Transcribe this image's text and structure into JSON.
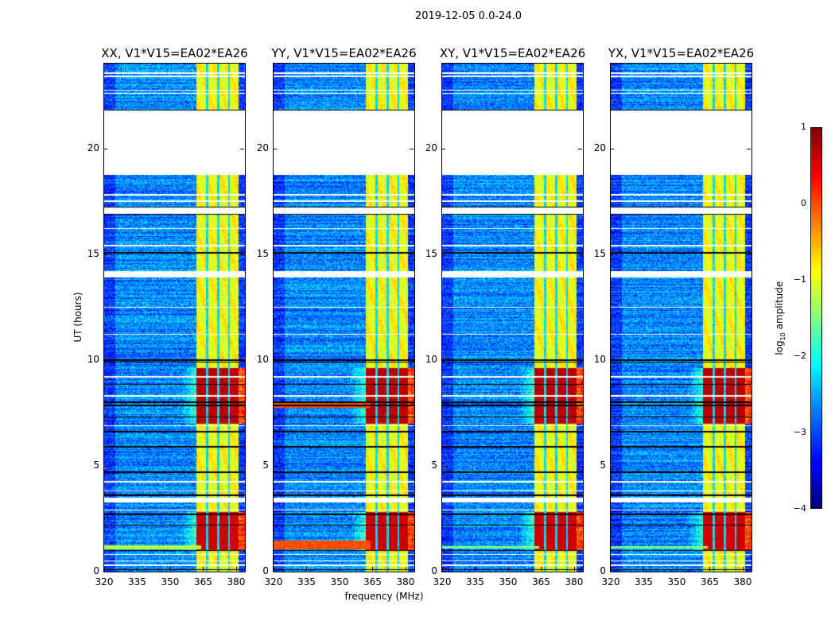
{
  "chart_data": {
    "type": "heatmap",
    "title": "2019-12-05 0.0-24.0",
    "xlabel": "frequency (MHz)",
    "ylabel": "UT (hours)",
    "xlim": [
      320,
      384
    ],
    "ylim": [
      0,
      24
    ],
    "xticks": [
      "320",
      "335",
      "350",
      "365",
      "380"
    ],
    "xtick_values": [
      320,
      335,
      350,
      365,
      380
    ],
    "yticks": [
      "0",
      "5",
      "10",
      "15",
      "20"
    ],
    "ytick_values": [
      0,
      5,
      10,
      15,
      20
    ],
    "colorbar": {
      "label_parts": [
        "log",
        "10",
        " amplitude"
      ],
      "range": [
        -4,
        1
      ],
      "ticks": [
        "1",
        "0",
        "−1",
        "−2",
        "−3",
        "−4"
      ],
      "tick_values": [
        1,
        0,
        -1,
        -2,
        -3,
        -4
      ],
      "colormap": "jet"
    },
    "background_level": -2.7,
    "no_data_intervals_hours": [
      [
        18.75,
        21.8
      ],
      [
        16.9,
        17.2
      ],
      [
        13.9,
        14.2
      ],
      [
        3.25,
        3.5
      ]
    ],
    "flagged_lines_hours": [
      0.1,
      1.0,
      2.2,
      2.7,
      3.6,
      4.7,
      5.9,
      6.6,
      7.3,
      7.85,
      8.0,
      8.85,
      9.9,
      10.0,
      15.05,
      16.9,
      17.2,
      21.8
    ],
    "white_lines_hours": [
      0.3,
      0.5,
      0.8,
      2.9,
      3.8,
      4.25,
      6.9,
      8.3,
      9.2,
      11.2,
      12.5,
      15.4,
      16.2,
      17.5,
      17.8,
      22.6,
      22.75,
      23.4,
      23.55
    ],
    "rfi_band_mhz": [
      362,
      381
    ],
    "rfi_level": -0.9,
    "rfi_channel_gaps_mhz": [
      366.8,
      371.8,
      376.8
    ],
    "bursts": [
      {
        "hours": [
          7.0,
          9.6
        ],
        "level": 0.7
      },
      {
        "hours": [
          1.0,
          2.8
        ],
        "level": 0.6
      }
    ],
    "panels": [
      {
        "title": "XX, V1*V15=EA02*EA26",
        "broadband_hours": [
          [
            1.05,
            1.25
          ]
        ],
        "broadband_level": -1.2
      },
      {
        "title": "YY, V1*V15=EA02*EA26",
        "broadband_hours": [
          [
            1.05,
            1.45
          ],
          [
            7.75,
            7.95
          ]
        ],
        "broadband_level": 0.0
      },
      {
        "title": "XY, V1*V15=EA02*EA26",
        "broadband_hours": [
          [
            1.1,
            1.2
          ]
        ],
        "broadband_level": -1.5
      },
      {
        "title": "YX, V1*V15=EA02*EA26",
        "broadband_hours": [
          [
            1.1,
            1.2
          ]
        ],
        "broadband_level": -1.5
      }
    ]
  }
}
